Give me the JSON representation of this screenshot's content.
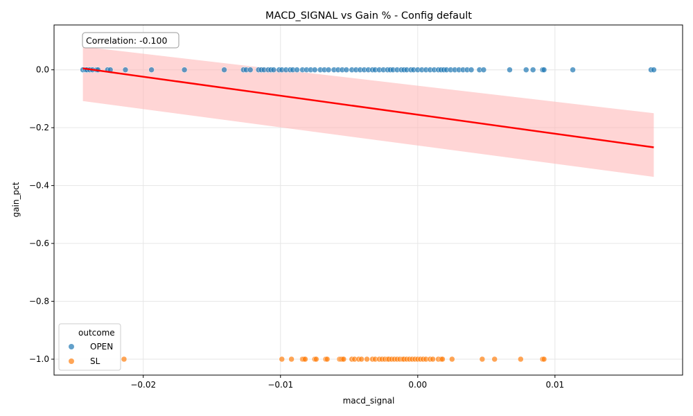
{
  "chart_data": {
    "type": "scatter",
    "title": "MACD_SIGNAL vs Gain % - Config default",
    "xlabel": "macd_signal",
    "ylabel": "gain_pct",
    "xlim": [
      -0.0265,
      0.0193
    ],
    "ylim": [
      -1.055,
      0.155
    ],
    "xticks": [
      -0.02,
      -0.01,
      0.0,
      0.01
    ],
    "xtick_labels": [
      "−0.02",
      "−0.01",
      "0.00",
      "0.01"
    ],
    "yticks": [
      0.0,
      -0.2,
      -0.4,
      -0.6,
      -0.8,
      -1.0
    ],
    "ytick_labels": [
      "0.0",
      "−0.2",
      "−0.4",
      "−0.6",
      "−0.8",
      "−1.0"
    ],
    "grid": true,
    "legend": {
      "title": "outcome",
      "placement": "lower-left",
      "entries": [
        {
          "name": "OPEN",
          "color": "#1f77b4"
        },
        {
          "name": "SL",
          "color": "#ff7f0e"
        }
      ]
    },
    "annotation": "Correlation: -0.100",
    "series": [
      {
        "name": "OPEN",
        "color": "#1f77b4",
        "y": 0.0,
        "x": [
          -0.0244,
          -0.0242,
          -0.0241,
          -0.0239,
          -0.0237,
          -0.0234,
          -0.0233,
          -0.0226,
          -0.0224,
          -0.0213,
          -0.0194,
          -0.017,
          -0.0141,
          -0.0127,
          -0.0125,
          -0.0122,
          -0.0116,
          -0.0114,
          -0.0112,
          -0.0109,
          -0.0107,
          -0.0105,
          -0.0101,
          -0.0099,
          -0.0096,
          -0.0093,
          -0.0091,
          -0.0088,
          -0.0084,
          -0.0081,
          -0.0078,
          -0.0075,
          -0.0071,
          -0.0068,
          -0.0065,
          -0.0061,
          -0.0058,
          -0.0055,
          -0.0052,
          -0.0048,
          -0.0045,
          -0.0042,
          -0.0039,
          -0.0036,
          -0.0033,
          -0.0031,
          -0.0028,
          -0.0025,
          -0.0022,
          -0.002,
          -0.0018,
          -0.0015,
          -0.0012,
          -0.001,
          -0.0008,
          -0.0005,
          -0.0003,
          0.0,
          0.0003,
          0.0006,
          0.0009,
          0.0012,
          0.0015,
          0.0017,
          0.0019,
          0.0021,
          0.0024,
          0.0027,
          0.003,
          0.0033,
          0.0036,
          0.0039,
          0.0045,
          0.0048,
          0.0067,
          0.0079,
          0.0084,
          0.0091,
          0.0092,
          0.0113,
          0.017,
          0.0172
        ]
      },
      {
        "name": "SL",
        "color": "#ff7f0e",
        "y": -1.0,
        "x": [
          -0.0214,
          -0.0099,
          -0.0092,
          -0.0084,
          -0.0083,
          -0.0082,
          -0.0075,
          -0.0074,
          -0.0067,
          -0.0066,
          -0.0057,
          -0.0056,
          -0.0055,
          -0.0054,
          -0.0048,
          -0.0046,
          -0.0043,
          -0.0041,
          -0.0037,
          -0.0033,
          -0.0031,
          -0.0028,
          -0.0026,
          -0.0024,
          -0.0022,
          -0.0021,
          -0.0019,
          -0.0017,
          -0.0015,
          -0.0013,
          -0.0011,
          -0.001,
          -0.0008,
          -0.0006,
          -0.0004,
          -0.0002,
          0.0,
          0.0002,
          0.0004,
          0.0006,
          0.0009,
          0.0011,
          0.0015,
          0.0017,
          0.0018,
          0.0025,
          0.0047,
          0.0056,
          0.0075,
          0.0091,
          0.0092
        ]
      }
    ],
    "regression": {
      "color": "#ff0000",
      "band_color": "#ffb3b3",
      "x": [
        -0.0244,
        0.0172
      ],
      "y": [
        0.005,
        -0.268
      ],
      "ci_upper": [
        0.08,
        -0.15
      ],
      "ci_lower": [
        -0.108,
        -0.37
      ]
    }
  }
}
